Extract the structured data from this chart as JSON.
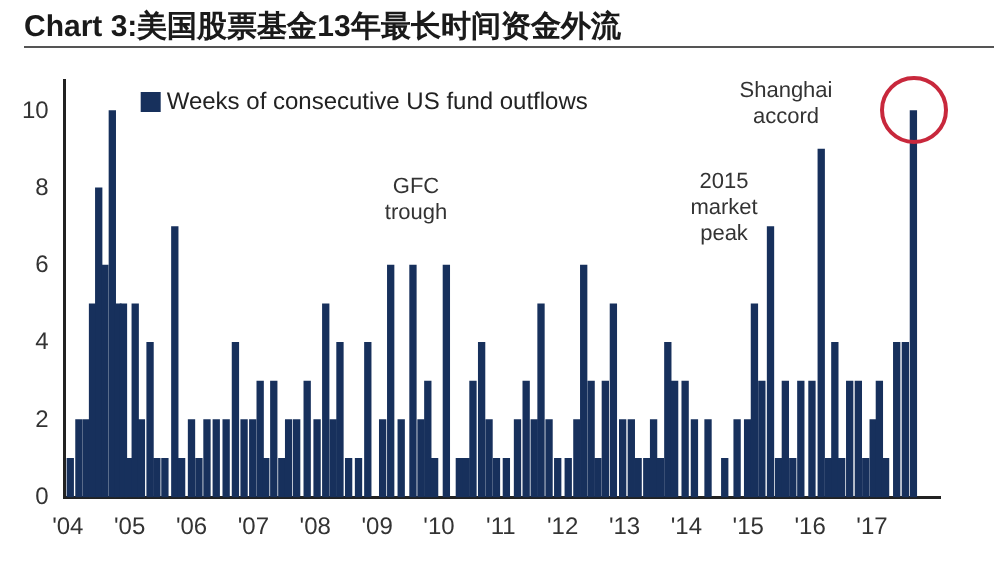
{
  "chart_data": {
    "type": "bar",
    "title": "Chart 3:美国股票基金13年最长时间资金外流",
    "xlim": [
      2003.95,
      2018.1
    ],
    "xticks": [
      {
        "value": 2004,
        "label": "'04"
      },
      {
        "value": 2005,
        "label": "'05"
      },
      {
        "value": 2006,
        "label": "'06"
      },
      {
        "value": 2007,
        "label": "'07"
      },
      {
        "value": 2008,
        "label": "'08"
      },
      {
        "value": 2009,
        "label": "'09"
      },
      {
        "value": 2010,
        "label": "'10"
      },
      {
        "value": 2011,
        "label": "'11"
      },
      {
        "value": 2012,
        "label": "'12"
      },
      {
        "value": 2013,
        "label": "'13"
      },
      {
        "value": 2014,
        "label": "'14"
      },
      {
        "value": 2015,
        "label": "'15"
      },
      {
        "value": 2016,
        "label": "'16"
      },
      {
        "value": 2017,
        "label": "'17"
      }
    ],
    "ylim": [
      0,
      10.8
    ],
    "yticks": [
      0,
      2,
      4,
      6,
      8,
      10
    ],
    "grid": false,
    "legend": "top left",
    "series": [
      {
        "name": "Weeks of consecutive US fund outflows",
        "color": "#17305c",
        "x": [
          2004.04,
          2004.18,
          2004.3,
          2004.4,
          2004.5,
          2004.6,
          2004.72,
          2004.81,
          2004.9,
          2004.98,
          2005.09,
          2005.19,
          2005.33,
          2005.44,
          2005.57,
          2005.73,
          2005.84,
          2006.0,
          2006.12,
          2006.25,
          2006.4,
          2006.56,
          2006.71,
          2006.85,
          2006.99,
          2007.11,
          2007.2,
          2007.33,
          2007.46,
          2007.57,
          2007.7,
          2007.87,
          2008.03,
          2008.17,
          2008.29,
          2008.4,
          2008.54,
          2008.7,
          2008.85,
          2009.09,
          2009.22,
          2009.39,
          2009.58,
          2009.71,
          2009.82,
          2009.93,
          2010.12,
          2010.33,
          2010.44,
          2010.55,
          2010.69,
          2010.81,
          2010.93,
          2011.09,
          2011.27,
          2011.41,
          2011.54,
          2011.65,
          2011.78,
          2011.92,
          2012.09,
          2012.23,
          2012.34,
          2012.46,
          2012.57,
          2012.69,
          2012.82,
          2012.97,
          2013.11,
          2013.22,
          2013.36,
          2013.47,
          2013.58,
          2013.7,
          2013.81,
          2013.98,
          2014.13,
          2014.35,
          2014.62,
          2014.82,
          2014.99,
          2015.1,
          2015.22,
          2015.36,
          2015.49,
          2015.6,
          2015.72,
          2015.85,
          2016.03,
          2016.18,
          2016.3,
          2016.4,
          2016.51,
          2016.64,
          2016.78,
          2016.9,
          2017.02,
          2017.12,
          2017.22,
          2017.4,
          2017.54,
          2017.67
        ],
        "values": [
          1,
          2,
          2,
          5,
          8,
          6,
          10,
          5,
          5,
          1,
          5,
          2,
          4,
          1,
          1,
          7,
          1,
          2,
          1,
          2,
          2,
          2,
          4,
          2,
          2,
          3,
          1,
          3,
          1,
          2,
          2,
          3,
          2,
          5,
          2,
          4,
          1,
          1,
          4,
          2,
          6,
          2,
          6,
          2,
          3,
          1,
          6,
          1,
          1,
          3,
          4,
          2,
          1,
          1,
          2,
          3,
          2,
          5,
          2,
          1,
          1,
          2,
          6,
          3,
          1,
          3,
          5,
          2,
          2,
          1,
          1,
          2,
          1,
          4,
          3,
          3,
          2,
          2,
          1,
          2,
          2,
          5,
          3,
          7,
          1,
          3,
          1,
          3,
          3,
          9,
          1,
          4,
          1,
          3,
          3,
          1,
          2,
          3,
          1,
          4,
          4,
          10
        ]
      }
    ],
    "annotations": [
      "GFC trough",
      "2015 market peak",
      "Shanghai accord"
    ]
  }
}
